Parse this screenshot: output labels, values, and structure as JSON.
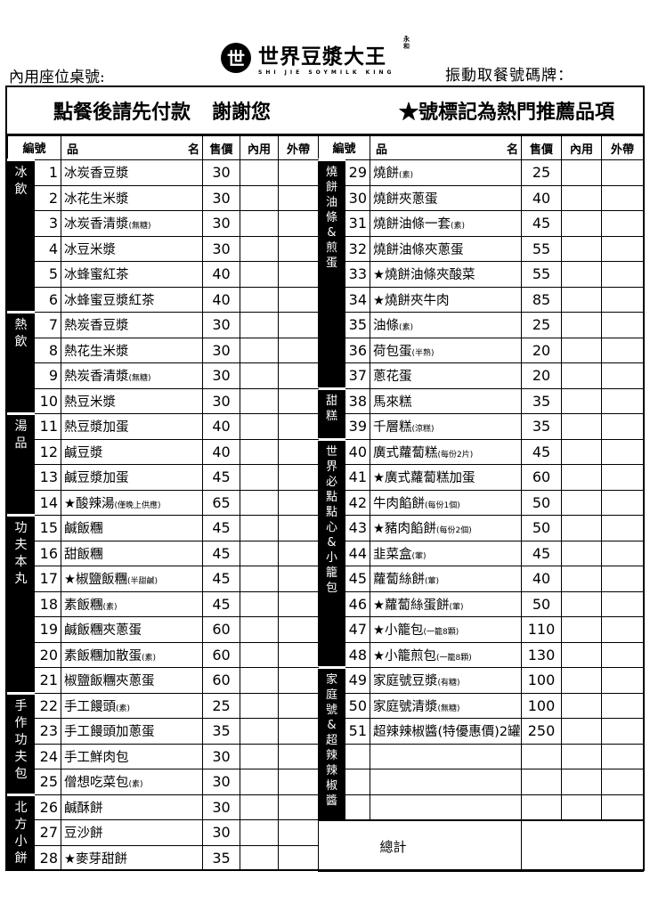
{
  "header": {
    "seat_label": "內用座位桌號:",
    "pager_label": "振動取餐號碼牌：",
    "logo_cn": "世界豆漿大王",
    "logo_en": "SHI JIE SOYMILK KING",
    "logo_mark": "世",
    "logo_seal": "永和"
  },
  "banner": {
    "pay_first": "點餐後請先付款",
    "thanks": "謝謝您",
    "star_note": "★號標記為熱門推薦品項"
  },
  "columns": {
    "num": "編號",
    "name_left": "品",
    "name_right": "名",
    "price": "售價",
    "dine_in": "內用",
    "takeaway": "外帶"
  },
  "total_label": "總計",
  "left": [
    {
      "category": "冰飲",
      "items": [
        [
          "1",
          "冰炭香豆漿",
          "",
          "30"
        ],
        [
          "2",
          "冰花生米漿",
          "",
          "30"
        ],
        [
          "3",
          "冰炭香清漿",
          "(無糖)",
          "30"
        ],
        [
          "4",
          "冰豆米漿",
          "",
          "30"
        ],
        [
          "5",
          "冰蜂蜜紅茶",
          "",
          "40"
        ],
        [
          "6",
          "冰蜂蜜豆漿紅茶",
          "",
          "40"
        ]
      ]
    },
    {
      "category": "熱飲",
      "items": [
        [
          "7",
          "熱炭香豆漿",
          "",
          "30"
        ],
        [
          "8",
          "熱花生米漿",
          "",
          "30"
        ],
        [
          "9",
          "熱炭香清漿",
          "(無糖)",
          "30"
        ],
        [
          "10",
          "熱豆米漿",
          "",
          "30"
        ]
      ]
    },
    {
      "category": "湯品",
      "items": [
        [
          "11",
          "熱豆漿加蛋",
          "",
          "40"
        ],
        [
          "12",
          "鹹豆漿",
          "",
          "40"
        ],
        [
          "13",
          "鹹豆漿加蛋",
          "",
          "45"
        ],
        [
          "14",
          "★酸辣湯",
          "(僅晚上供應)",
          "65"
        ]
      ]
    },
    {
      "category": "功夫本丸",
      "items": [
        [
          "15",
          "鹹飯糰",
          "",
          "45"
        ],
        [
          "16",
          "甜飯糰",
          "",
          "45"
        ],
        [
          "17",
          "★椒鹽飯糰",
          "(半甜鹹)",
          "45"
        ],
        [
          "18",
          "素飯糰",
          "(素)",
          "45"
        ],
        [
          "19",
          "鹹飯糰夾蔥蛋",
          "",
          "60"
        ],
        [
          "20",
          "素飯糰加散蛋",
          "(素)",
          "60"
        ],
        [
          "21",
          "椒鹽飯糰夾蔥蛋",
          "",
          "60"
        ]
      ]
    },
    {
      "category": "手作功夫包",
      "items": [
        [
          "22",
          "手工饅頭",
          "(素)",
          "25"
        ],
        [
          "23",
          "手工饅頭加蔥蛋",
          "",
          "35"
        ],
        [
          "24",
          "手工鮮肉包",
          "",
          "30"
        ],
        [
          "25",
          "僧想吃菜包",
          "(素)",
          "30"
        ]
      ]
    },
    {
      "category": "北方小餅",
      "items": [
        [
          "26",
          "鹹酥餅",
          "",
          "30"
        ],
        [
          "27",
          "豆沙餅",
          "",
          "30"
        ],
        [
          "28",
          "★麥芽甜餅",
          "",
          "35"
        ]
      ]
    }
  ],
  "right": [
    {
      "category": "燒餅油條&煎蛋",
      "items": [
        [
          "29",
          "燒餅",
          "(素)",
          "25"
        ],
        [
          "30",
          "燒餅夾蔥蛋",
          "",
          "40"
        ],
        [
          "31",
          "燒餅油條一套",
          "(素)",
          "45"
        ],
        [
          "32",
          "燒餅油條夾蔥蛋",
          "",
          "55"
        ],
        [
          "33",
          "★燒餅油條夾酸菜",
          "",
          "55"
        ],
        [
          "34",
          "★燒餅夾牛肉",
          "",
          "85"
        ],
        [
          "35",
          "油條",
          "(素)",
          "25"
        ],
        [
          "36",
          "荷包蛋",
          "(半熟)",
          "20"
        ],
        [
          "37",
          "蔥花蛋",
          "",
          "20"
        ]
      ]
    },
    {
      "category": "甜糕",
      "items": [
        [
          "38",
          "馬來糕",
          "",
          "35"
        ],
        [
          "39",
          "千層糕",
          "(涼糕)",
          "35"
        ]
      ]
    },
    {
      "category": "世界必點點心&小籠包",
      "items": [
        [
          "40",
          "廣式蘿蔔糕",
          "(每份2片)",
          "45"
        ],
        [
          "41",
          "★廣式蘿蔔糕加蛋",
          "",
          "60"
        ],
        [
          "42",
          "牛肉餡餅",
          "(每份1個)",
          "50"
        ],
        [
          "43",
          "★豬肉餡餅",
          "(每份2個)",
          "50"
        ],
        [
          "44",
          "韭菜盒",
          "(葷)",
          "45"
        ],
        [
          "45",
          "蘿蔔絲餅",
          "(葷)",
          "40"
        ],
        [
          "46",
          "★蘿蔔絲蛋餅",
          "(葷)",
          "50"
        ],
        [
          "47",
          "★小籠包",
          "(一籠8顆)",
          "110"
        ],
        [
          "48",
          "★小籠煎包",
          "(一籠8顆)",
          "130"
        ]
      ]
    },
    {
      "category": "家庭號&超辣辣椒醬",
      "items": [
        [
          "49",
          "家庭號豆漿",
          "(有糖)",
          "100"
        ],
        [
          "50",
          "家庭號清漿",
          "(無糖)",
          "100"
        ],
        [
          "51",
          "超辣辣椒醬(特優惠價)2罐",
          "",
          "250"
        ],
        [
          "",
          "",
          "",
          ""
        ],
        [
          "",
          "",
          "",
          ""
        ],
        [
          "",
          "",
          "",
          ""
        ]
      ]
    }
  ]
}
